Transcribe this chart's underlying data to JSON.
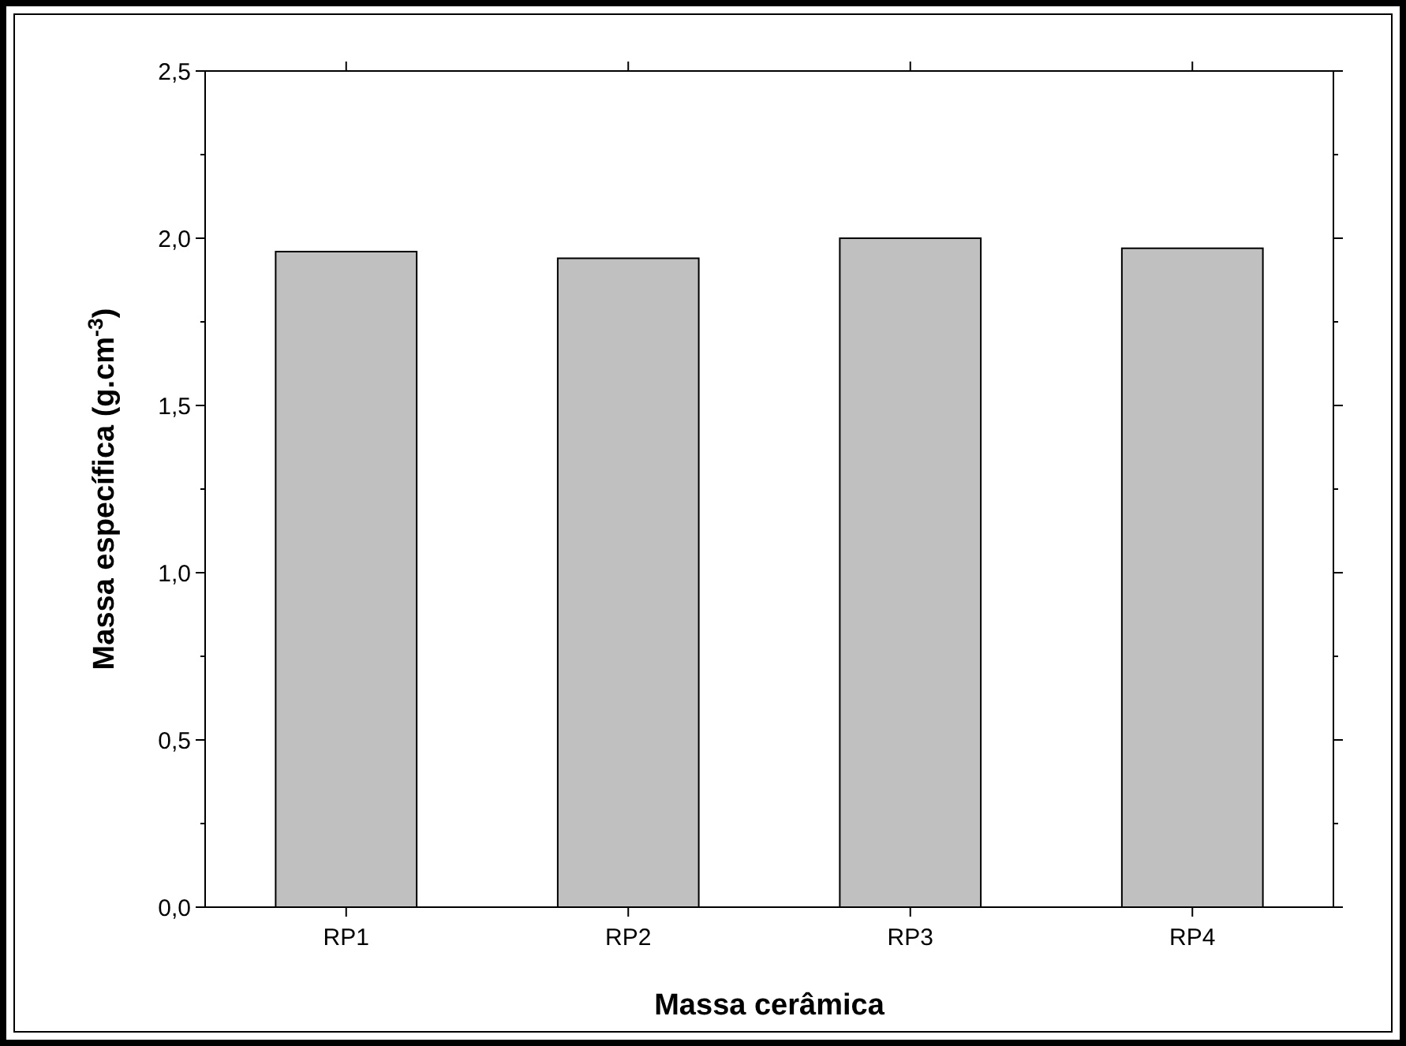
{
  "chart_data": {
    "type": "bar",
    "xlabel": "Massa cerâmica",
    "ylabel": "Massa específica (g.cm$^{-3}$)",
    "categories": [
      "RP1",
      "RP2",
      "RP3",
      "RP4"
    ],
    "values": [
      1.96,
      1.94,
      2.0,
      1.97
    ],
    "color": "#c0c0c0",
    "ylim": [
      0,
      2.5
    ],
    "yticks": [
      {
        "value": 0,
        "label": "0,0"
      },
      {
        "value": 0.5,
        "label": "0,5"
      },
      {
        "value": 1,
        "label": "1,0"
      },
      {
        "value": 1.5,
        "label": "1,5"
      },
      {
        "value": 2,
        "label": "2,0"
      },
      {
        "value": 2.5,
        "label": "2,5"
      }
    ]
  }
}
